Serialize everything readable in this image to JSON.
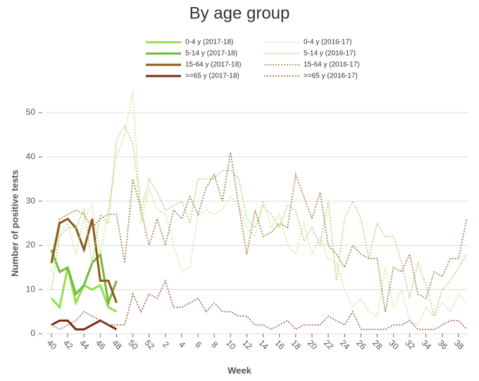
{
  "chart_data": {
    "type": "line",
    "title": "By age group",
    "xlabel": "Week",
    "ylabel": "Number of positive tests",
    "categories": [
      "40",
      null,
      "42",
      null,
      "44",
      null,
      "46",
      null,
      "48",
      null,
      "50",
      null,
      "52",
      null,
      "2",
      null,
      "4",
      null,
      "6",
      null,
      "8",
      null,
      "10",
      null,
      "12",
      null,
      "14",
      null,
      "16",
      null,
      "18",
      null,
      "20",
      null,
      "22",
      null,
      "24",
      null,
      "26",
      null,
      "28",
      null,
      "30",
      null,
      "32",
      null,
      "34",
      null,
      "36",
      null,
      "38",
      null
    ],
    "ylim": [
      0,
      55
    ],
    "yticks": [
      0,
      10,
      20,
      30,
      40,
      50
    ],
    "grid": true,
    "legend": "top",
    "series": [
      {
        "name": "0-4 y (2017-18)",
        "color": "#92e04a",
        "style": "solid",
        "values": [
          8,
          6,
          15,
          7,
          11,
          10,
          11,
          6,
          5,
          null,
          null,
          null,
          null,
          null,
          null,
          null,
          null,
          null,
          null,
          null,
          null,
          null,
          null,
          null,
          null,
          null,
          null,
          null,
          null,
          null,
          null,
          null,
          null,
          null,
          null,
          null,
          null,
          null,
          null,
          null,
          null,
          null,
          null,
          null,
          null,
          null,
          null,
          null,
          null,
          null,
          null,
          null
        ]
      },
      {
        "name": "5-14 y (2017-18)",
        "color": "#72b83c",
        "style": "solid",
        "values": [
          19,
          14,
          15,
          9,
          11,
          16,
          18,
          7,
          12,
          null,
          null,
          null,
          null,
          null,
          null,
          null,
          null,
          null,
          null,
          null,
          null,
          null,
          null,
          null,
          null,
          null,
          null,
          null,
          null,
          null,
          null,
          null,
          null,
          null,
          null,
          null,
          null,
          null,
          null,
          null,
          null,
          null,
          null,
          null,
          null,
          null,
          null,
          null,
          null,
          null,
          null,
          null
        ]
      },
      {
        "name": "15-64 y (2017-18)",
        "color": "#8a5a18",
        "style": "solid",
        "values": [
          16,
          25,
          26,
          24,
          19,
          26,
          12,
          12,
          7,
          null,
          null,
          null,
          null,
          null,
          null,
          null,
          null,
          null,
          null,
          null,
          null,
          null,
          null,
          null,
          null,
          null,
          null,
          null,
          null,
          null,
          null,
          null,
          null,
          null,
          null,
          null,
          null,
          null,
          null,
          null,
          null,
          null,
          null,
          null,
          null,
          null,
          null,
          null,
          null,
          null,
          null,
          null
        ]
      },
      {
        "name": ">=65 y (2017-18)",
        "color": "#7a2a12",
        "style": "solid",
        "values": [
          2,
          3,
          3,
          1,
          1,
          2,
          3,
          2,
          1,
          null,
          null,
          null,
          null,
          null,
          null,
          null,
          null,
          null,
          null,
          null,
          null,
          null,
          null,
          null,
          null,
          null,
          null,
          null,
          null,
          null,
          null,
          null,
          null,
          null,
          null,
          null,
          null,
          null,
          null,
          null,
          null,
          null,
          null,
          null,
          null,
          null,
          null,
          null,
          null,
          null,
          null,
          null
        ]
      },
      {
        "name": "0-4 y (2016-17)",
        "color": "#c9e89a",
        "style": "dotted",
        "values": [
          14,
          23,
          25,
          18,
          26,
          29,
          18,
          28,
          40,
          45,
          55,
          25,
          33,
          28,
          27,
          20,
          14,
          15,
          27,
          28,
          27,
          28,
          31,
          29,
          24,
          22,
          30,
          24,
          27,
          20,
          18,
          25,
          18,
          22,
          17,
          16,
          10,
          6,
          8,
          5,
          4,
          15,
          6,
          10,
          3,
          2,
          6,
          4,
          7,
          5,
          9,
          7
        ]
      },
      {
        "name": "5-14 y (2016-17)",
        "color": "#a9d876",
        "style": "dotted",
        "values": [
          10,
          22,
          24,
          24,
          28,
          16,
          27,
          25,
          44,
          47,
          43,
          28,
          35,
          32,
          28,
          29,
          30,
          25,
          35,
          35,
          35,
          37,
          37,
          35,
          26,
          24,
          29,
          27,
          24,
          29,
          28,
          21,
          24,
          20,
          30,
          12,
          26,
          30,
          26,
          17,
          25,
          22,
          22,
          16,
          8,
          16,
          11,
          4,
          10,
          12,
          15,
          18
        ]
      },
      {
        "name": "15-64 y (2016-17)",
        "color": "#a87a48",
        "style": "dotted",
        "values": [
          17,
          26,
          27,
          28,
          27,
          24,
          26,
          27,
          27,
          16,
          35,
          28,
          20,
          26,
          20,
          28,
          26,
          31,
          27,
          33,
          36,
          30,
          41,
          29,
          18,
          28,
          22,
          23,
          25,
          24,
          36,
          31,
          26,
          32,
          20,
          18,
          15,
          20,
          18,
          17,
          17,
          5,
          15,
          14,
          18,
          9,
          8,
          14,
          13,
          17,
          17,
          26
        ]
      },
      {
        "name": ">=65 y (2016-17)",
        "color": "#a0604a",
        "style": "dotted",
        "values": [
          2,
          1,
          2,
          3,
          5,
          4,
          3,
          2,
          2,
          2,
          9,
          5,
          9,
          8,
          12,
          6,
          6,
          7,
          8,
          5,
          7,
          5,
          5,
          4,
          4,
          2,
          2,
          1,
          2,
          3,
          1,
          2,
          2,
          2,
          4,
          3,
          2,
          5,
          1,
          1,
          1,
          1,
          2,
          2,
          3,
          1,
          1,
          1,
          2,
          3,
          3,
          1
        ]
      }
    ]
  }
}
